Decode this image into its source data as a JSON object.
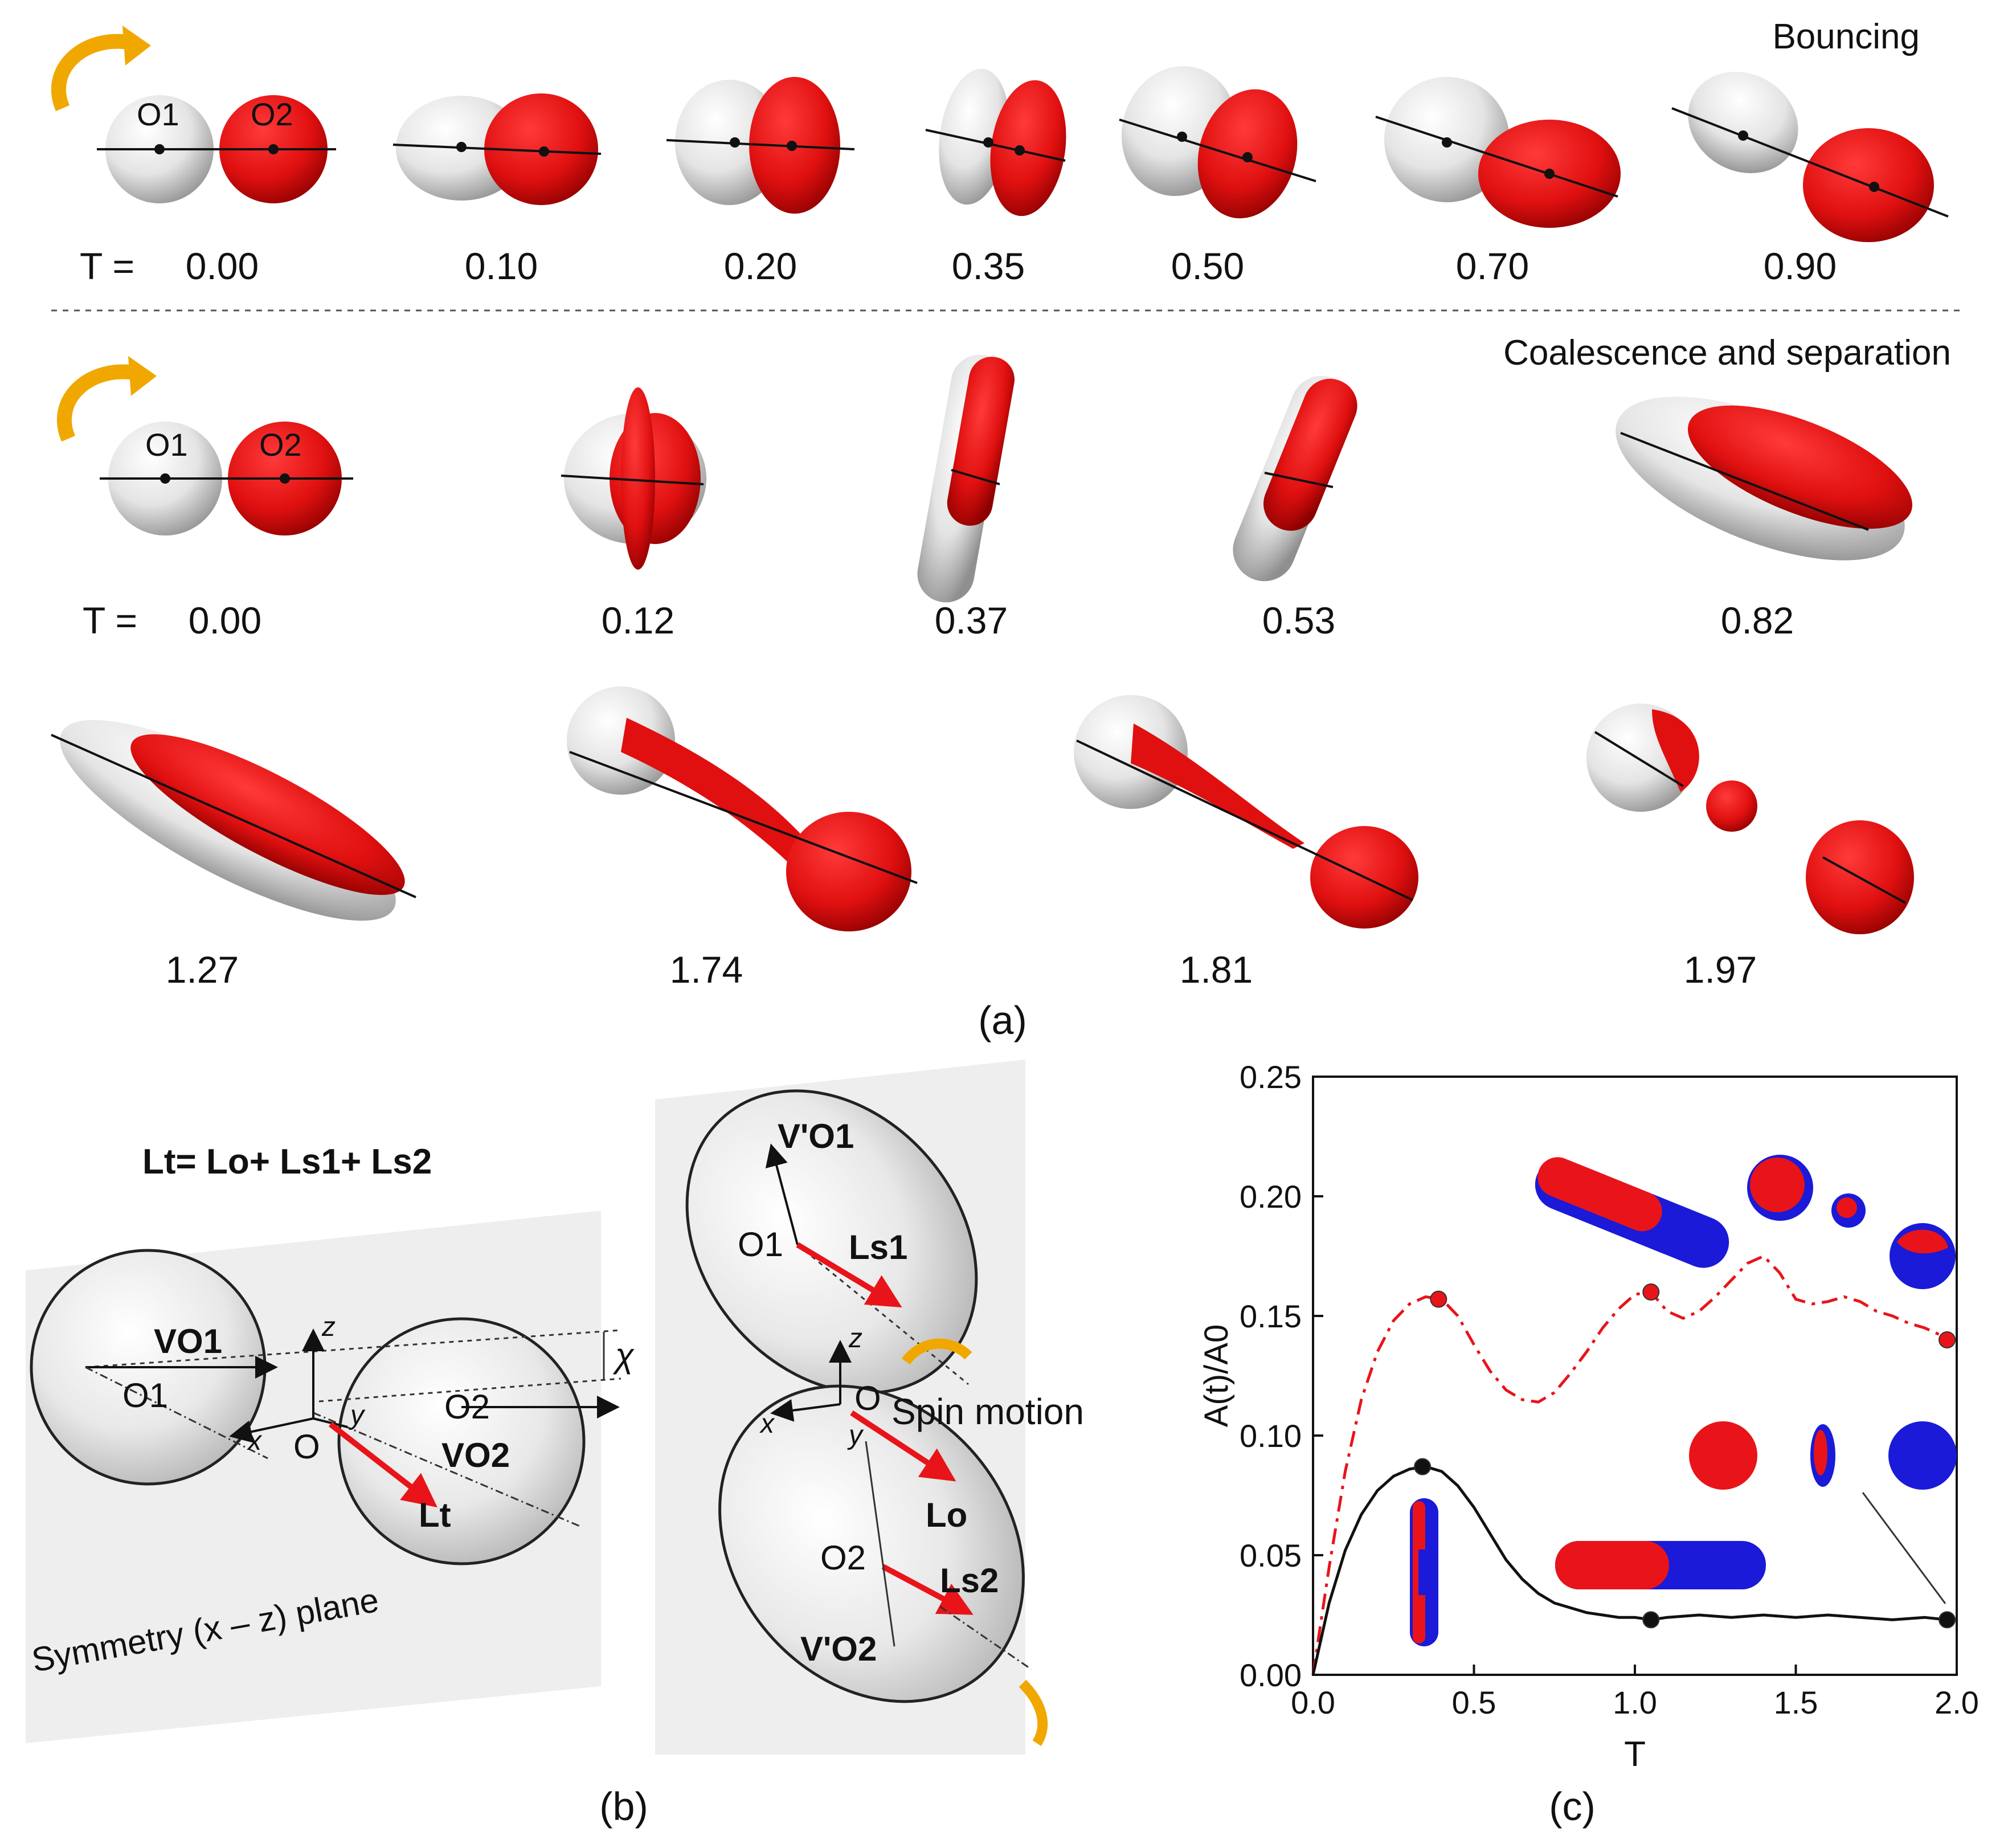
{
  "panel_a": {
    "bouncing": {
      "title": "Bouncing",
      "t_prefix": "T =",
      "times": [
        "0.00",
        "0.10",
        "0.20",
        "0.35",
        "0.50",
        "0.70",
        "0.90"
      ],
      "o1": "O1",
      "o2": "O2"
    },
    "coalescence": {
      "title": "Coalescence and separation",
      "t_prefix": "T =",
      "times_row1": [
        "0.00",
        "0.12",
        "0.37",
        "0.53",
        "0.82"
      ],
      "times_row2": [
        "1.27",
        "1.74",
        "1.81",
        "1.97"
      ],
      "o1": "O1",
      "o2": "O2"
    },
    "label": "(a)"
  },
  "panel_b": {
    "equation": "Lt= Lo+ Ls1+ Ls2",
    "left": {
      "v_o1": "VO1",
      "o1": "O1",
      "o": "O",
      "o2": "O2",
      "v_o2": "VO2",
      "lt": "Lt",
      "x": "x",
      "y": "y",
      "z": "z",
      "chi": "χ",
      "plane_label": "Symmetry (x – z) plane"
    },
    "right": {
      "v_o1p": "V'O1",
      "o1": "O1",
      "ls1": "Ls1",
      "o": "O",
      "spin": "Spin motion",
      "lo": "Lo",
      "o2": "O2",
      "ls2": "Ls2",
      "v_o2p": "V'O2",
      "x": "x",
      "y": "y",
      "z": "z"
    },
    "label": "(b)"
  },
  "panel_c": {
    "label": "(c)",
    "chart_data": {
      "type": "line",
      "xlabel": "T",
      "ylabel": "A(t)/A0",
      "xlim": [
        0.0,
        2.0
      ],
      "ylim": [
        0.0,
        0.25
      ],
      "xticks": [
        "0.0",
        "0.5",
        "1.0",
        "1.5",
        "2.0"
      ],
      "yticks": [
        "0.00",
        "0.05",
        "0.10",
        "0.15",
        "0.20",
        "0.25"
      ],
      "series": [
        {
          "name": "red dash-dot",
          "style": "dash-dot",
          "color": "#e8141a",
          "x": [
            0.0,
            0.02,
            0.05,
            0.1,
            0.15,
            0.2,
            0.25,
            0.3,
            0.35,
            0.4,
            0.45,
            0.5,
            0.55,
            0.6,
            0.65,
            0.7,
            0.75,
            0.8,
            0.85,
            0.9,
            0.95,
            1.0,
            1.05,
            1.1,
            1.15,
            1.2,
            1.25,
            1.3,
            1.35,
            1.4,
            1.45,
            1.5,
            1.55,
            1.6,
            1.65,
            1.7,
            1.75,
            1.8,
            1.85,
            1.9,
            1.95,
            1.97
          ],
          "y": [
            0.0,
            0.018,
            0.045,
            0.085,
            0.115,
            0.135,
            0.148,
            0.155,
            0.158,
            0.157,
            0.15,
            0.138,
            0.127,
            0.119,
            0.115,
            0.114,
            0.118,
            0.126,
            0.135,
            0.145,
            0.153,
            0.159,
            0.16,
            0.152,
            0.149,
            0.152,
            0.158,
            0.165,
            0.172,
            0.175,
            0.168,
            0.157,
            0.155,
            0.156,
            0.158,
            0.156,
            0.152,
            0.15,
            0.147,
            0.145,
            0.142,
            0.14
          ],
          "markers": [
            [
              0.39,
              0.157
            ],
            [
              1.05,
              0.16
            ],
            [
              1.97,
              0.14
            ]
          ]
        },
        {
          "name": "black solid",
          "style": "solid",
          "color": "#111111",
          "x": [
            0.0,
            0.02,
            0.05,
            0.1,
            0.15,
            0.2,
            0.25,
            0.3,
            0.35,
            0.4,
            0.45,
            0.5,
            0.55,
            0.6,
            0.65,
            0.7,
            0.75,
            0.8,
            0.85,
            0.9,
            0.95,
            1.0,
            1.05,
            1.1,
            1.2,
            1.3,
            1.4,
            1.5,
            1.6,
            1.7,
            1.8,
            1.9,
            1.97
          ],
          "y": [
            0.0,
            0.012,
            0.03,
            0.052,
            0.067,
            0.077,
            0.083,
            0.086,
            0.087,
            0.085,
            0.079,
            0.07,
            0.059,
            0.048,
            0.04,
            0.034,
            0.03,
            0.028,
            0.026,
            0.025,
            0.024,
            0.024,
            0.023,
            0.024,
            0.025,
            0.024,
            0.025,
            0.024,
            0.025,
            0.024,
            0.023,
            0.024,
            0.023
          ],
          "markers": [
            [
              0.34,
              0.087
            ],
            [
              1.05,
              0.023
            ],
            [
              1.97,
              0.023
            ]
          ]
        }
      ]
    }
  }
}
